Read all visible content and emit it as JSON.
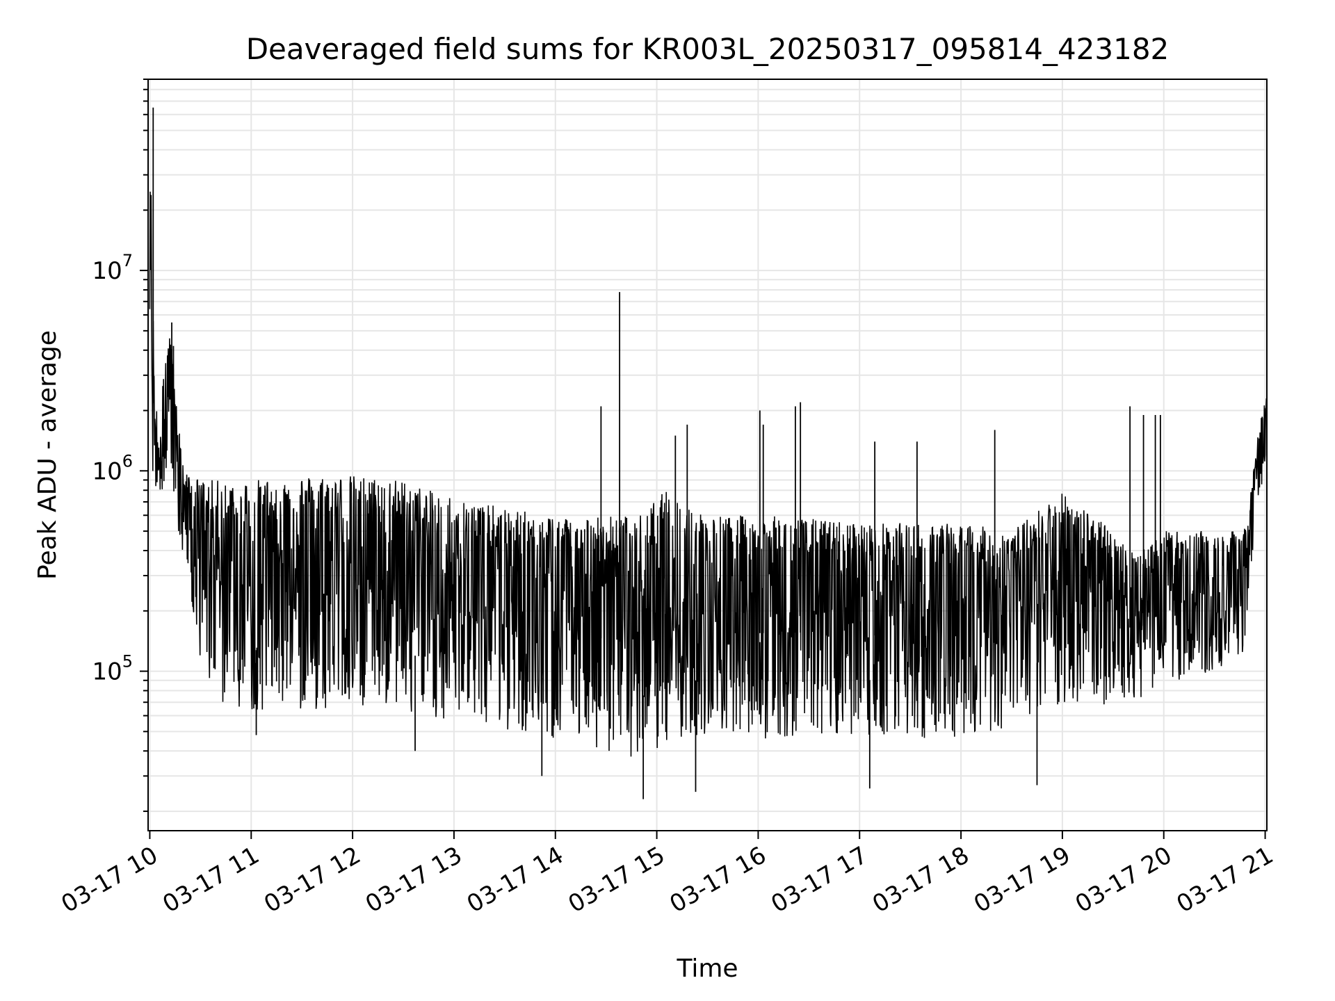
{
  "chart_data": {
    "type": "line",
    "title": "Deaveraged field sums for KR003L_20250317_095814_423182",
    "xlabel": "Time",
    "ylabel": "Peak ADU - average",
    "xlim": [
      "03-17 09:59",
      "03-17 21:01"
    ],
    "ylim": [
      16000,
      90000000
    ],
    "y_scale": "log",
    "grid": true,
    "legend": "none",
    "line_color": "#000000",
    "x_ticks": [
      "03-17 10",
      "03-17 11",
      "03-17 12",
      "03-17 13",
      "03-17 14",
      "03-17 15",
      "03-17 16",
      "03-17 17",
      "03-17 18",
      "03-17 19",
      "03-17 20",
      "03-17 21"
    ],
    "y_ticks": [
      {
        "value": 100000,
        "base": "10",
        "exp": "5"
      },
      {
        "value": 1000000,
        "base": "10",
        "exp": "6"
      },
      {
        "value": 10000000,
        "base": "10",
        "exp": "7"
      }
    ],
    "series": [
      {
        "envelope": [
          {
            "t": "10:00",
            "lo": 900000,
            "hi": 60000000
          },
          {
            "t": "10:03",
            "lo": 700000,
            "hi": 2000000
          },
          {
            "t": "10:12",
            "lo": 800000,
            "hi": 5000000
          },
          {
            "t": "10:20",
            "lo": 300000,
            "hi": 1000000
          },
          {
            "t": "10:30",
            "lo": 100000,
            "hi": 900000
          },
          {
            "t": "10:40",
            "lo": 60000,
            "hi": 900000
          },
          {
            "t": "11:00",
            "lo": 55000,
            "hi": 900000
          },
          {
            "t": "11:30",
            "lo": 55000,
            "hi": 950000
          },
          {
            "t": "12:00",
            "lo": 55000,
            "hi": 950000
          },
          {
            "t": "12:30",
            "lo": 58000,
            "hi": 900000
          },
          {
            "t": "12:45",
            "lo": 45000,
            "hi": 800000
          },
          {
            "t": "13:00",
            "lo": 55000,
            "hi": 750000
          },
          {
            "t": "13:30",
            "lo": 45000,
            "hi": 650000
          },
          {
            "t": "14:00",
            "lo": 40000,
            "hi": 600000
          },
          {
            "t": "14:30",
            "lo": 35000,
            "hi": 600000
          },
          {
            "t": "14:50",
            "lo": 30000,
            "hi": 600000
          },
          {
            "t": "15:05",
            "lo": 35000,
            "hi": 800000
          },
          {
            "t": "15:30",
            "lo": 40000,
            "hi": 600000
          },
          {
            "t": "16:00",
            "lo": 40000,
            "hi": 600000
          },
          {
            "t": "16:30",
            "lo": 42000,
            "hi": 580000
          },
          {
            "t": "17:00",
            "lo": 42000,
            "hi": 550000
          },
          {
            "t": "17:30",
            "lo": 40000,
            "hi": 550000
          },
          {
            "t": "18:00",
            "lo": 40000,
            "hi": 550000
          },
          {
            "t": "18:30",
            "lo": 45000,
            "hi": 500000
          },
          {
            "t": "19:00",
            "lo": 60000,
            "hi": 800000
          },
          {
            "t": "19:30",
            "lo": 60000,
            "hi": 500000
          },
          {
            "t": "19:45",
            "lo": 65000,
            "hi": 400000
          },
          {
            "t": "20:00",
            "lo": 80000,
            "hi": 500000
          },
          {
            "t": "20:30",
            "lo": 90000,
            "hi": 500000
          },
          {
            "t": "20:45",
            "lo": 100000,
            "hi": 500000
          },
          {
            "t": "20:50",
            "lo": 150000,
            "hi": 600000
          },
          {
            "t": "20:55",
            "lo": 600000,
            "hi": 1400000
          },
          {
            "t": "21:01",
            "lo": 1100000,
            "hi": 2600000
          }
        ],
        "spikes": [
          {
            "t": "10:02",
            "value": 65000000
          },
          {
            "t": "10:13",
            "value": 5500000
          },
          {
            "t": "10:14",
            "value": 4200000
          },
          {
            "t": "14:27",
            "value": 2100000
          },
          {
            "t": "14:38",
            "value": 7800000
          },
          {
            "t": "15:11",
            "value": 1500000
          },
          {
            "t": "15:18",
            "value": 1700000
          },
          {
            "t": "16:01",
            "value": 2000000
          },
          {
            "t": "16:03",
            "value": 1700000
          },
          {
            "t": "16:22",
            "value": 2100000
          },
          {
            "t": "16:25",
            "value": 2200000
          },
          {
            "t": "17:09",
            "value": 1400000
          },
          {
            "t": "17:34",
            "value": 1400000
          },
          {
            "t": "18:20",
            "value": 1600000
          },
          {
            "t": "19:40",
            "value": 2100000
          },
          {
            "t": "19:48",
            "value": 1900000
          },
          {
            "t": "19:55",
            "value": 1900000
          },
          {
            "t": "19:58",
            "value": 1900000
          }
        ],
        "dips": [
          {
            "t": "11:03",
            "value": 48000
          },
          {
            "t": "12:37",
            "value": 40000
          },
          {
            "t": "13:52",
            "value": 30000
          },
          {
            "t": "14:52",
            "value": 23000
          },
          {
            "t": "15:23",
            "value": 25000
          },
          {
            "t": "17:06",
            "value": 26000
          },
          {
            "t": "18:45",
            "value": 27000
          }
        ]
      }
    ]
  }
}
